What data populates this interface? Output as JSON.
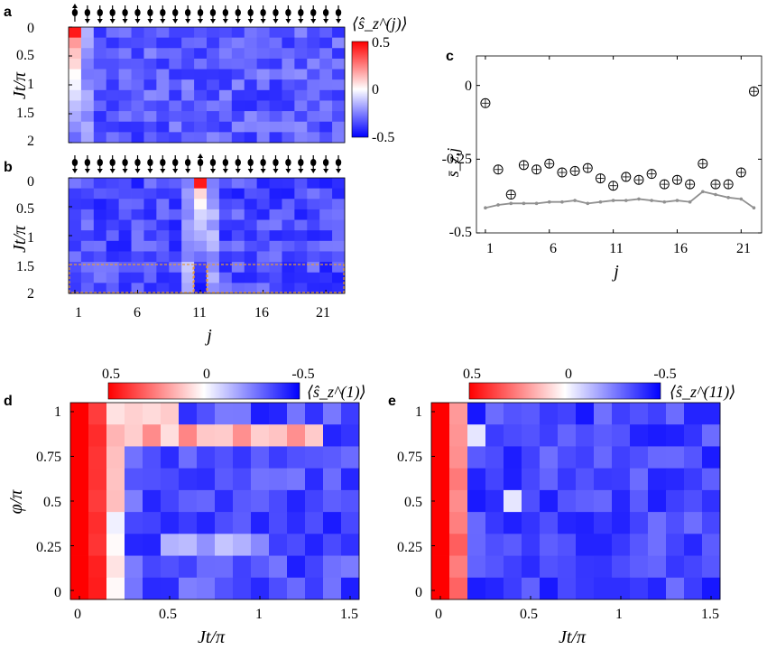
{
  "panel_labels": {
    "a": "a",
    "b": "b",
    "c": "c",
    "d": "d",
    "e": "e"
  },
  "colors": {
    "red": "#ff0000",
    "white": "#ffffff",
    "blue": "#0000ff",
    "marker_gray": "#909090",
    "box_orange": "#e69a3c"
  },
  "chart_data": [
    {
      "id": "a",
      "type": "heatmap",
      "xlabel": "",
      "ylabel": "Jt/π",
      "yticks": [
        "0",
        "0.5",
        "1",
        "1.5",
        "2"
      ],
      "colorbar": {
        "label": "⟨ŝ_z^(j)⟩",
        "ticks": [
          "0.5",
          "0",
          "-0.5"
        ],
        "range": [
          -0.5,
          0.5
        ]
      },
      "arrows_up_site": 1,
      "n_sites": 22,
      "n_times": 11,
      "excited_site": 1
    },
    {
      "id": "b",
      "type": "heatmap",
      "xlabel": "j",
      "ylabel": "Jt/π",
      "xticks": [
        "1",
        "6",
        "11",
        "16",
        "21"
      ],
      "yticks": [
        "0",
        "0.5",
        "1",
        "1.5",
        "2"
      ],
      "arrows_up_site": 11,
      "n_sites": 22,
      "n_times": 11,
      "excited_site": 11
    },
    {
      "id": "c",
      "type": "scatter",
      "xlabel": "j",
      "ylabel": "s̄_z,j",
      "xticks": [
        "1",
        "6",
        "11",
        "16",
        "21"
      ],
      "yticks": [
        "0",
        "-0.25",
        "-0.5"
      ],
      "xlim": [
        0.3,
        22.6
      ],
      "ylim": [
        -0.5,
        0.1
      ],
      "series": [
        {
          "x": [
            1,
            2,
            3,
            4,
            5,
            6,
            7,
            8,
            9,
            10,
            11,
            12,
            13,
            14,
            15,
            16,
            17,
            18,
            19,
            20,
            21,
            22
          ],
          "values": [
            -0.06,
            -0.285,
            -0.37,
            -0.27,
            -0.285,
            -0.265,
            -0.295,
            -0.29,
            -0.28,
            -0.315,
            -0.34,
            -0.31,
            -0.32,
            -0.3,
            -0.335,
            -0.32,
            -0.335,
            -0.265,
            -0.335,
            -0.335,
            -0.295,
            -0.02
          ]
        },
        {
          "x": [
            1,
            2,
            3,
            4,
            5,
            6,
            7,
            8,
            9,
            10,
            11,
            12,
            13,
            14,
            15,
            16,
            17,
            18,
            19,
            20,
            21,
            22
          ],
          "values": [
            -0.415,
            -0.405,
            -0.4,
            -0.4,
            -0.4,
            -0.395,
            -0.395,
            -0.39,
            -0.4,
            -0.395,
            -0.39,
            -0.39,
            -0.385,
            -0.39,
            -0.395,
            -0.39,
            -0.395,
            -0.36,
            -0.37,
            -0.38,
            -0.385,
            -0.415
          ]
        }
      ]
    },
    {
      "id": "d",
      "type": "heatmap",
      "xlabel": "Jt/π",
      "ylabel": "φ/π",
      "xticks": [
        "0",
        "0.5",
        "1",
        "1.5"
      ],
      "yticks": [
        "1",
        "0.75",
        "0.5",
        "0.25",
        "0"
      ],
      "colorbar": {
        "label": "⟨ŝ_z^(1)⟩",
        "ticks": [
          "0.5",
          "0",
          "-0.5"
        ]
      },
      "n_cols": 16,
      "n_rows": 9
    },
    {
      "id": "e",
      "type": "heatmap",
      "xlabel": "Jt/π",
      "ylabel": "",
      "xticks": [
        "0",
        "0.5",
        "1",
        "1.5"
      ],
      "yticks": [
        "1",
        "0.75",
        "0.5",
        "0.25",
        "0"
      ],
      "colorbar": {
        "label": "⟨ŝ_z^(11)⟩",
        "ticks": [
          "0.5",
          "0",
          "-0.5"
        ]
      },
      "n_cols": 16,
      "n_rows": 9
    }
  ]
}
